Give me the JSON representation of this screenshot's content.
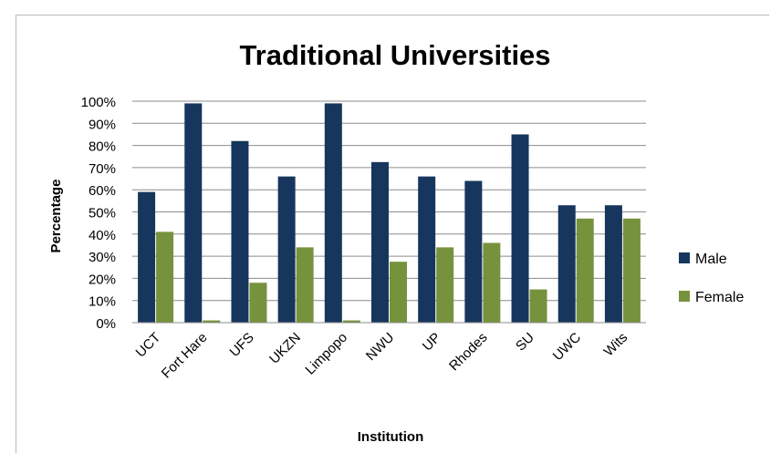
{
  "chart_data": {
    "type": "bar",
    "title": "Traditional Universities",
    "xlabel": "Institution",
    "ylabel": "Percentage",
    "ylim": [
      0,
      100
    ],
    "yticks": [
      "0%",
      "10%",
      "20%",
      "30%",
      "40%",
      "50%",
      "60%",
      "70%",
      "80%",
      "90%",
      "100%"
    ],
    "categories": [
      "UCT",
      "Fort Hare",
      "UFS",
      "UKZN",
      "Limpopo",
      "NWU",
      "UP",
      "Rhodes",
      "SU",
      "UWC",
      "Wits"
    ],
    "series": [
      {
        "name": "Male",
        "color": "#17365d",
        "values": [
          59,
          99,
          82,
          66,
          99,
          72.5,
          66,
          64,
          85,
          53,
          53
        ]
      },
      {
        "name": "Female",
        "color": "#76923c",
        "values": [
          41,
          1,
          18,
          34,
          1,
          27.5,
          34,
          36,
          15,
          47,
          47
        ]
      }
    ],
    "grid": true,
    "legend_position": "right"
  }
}
